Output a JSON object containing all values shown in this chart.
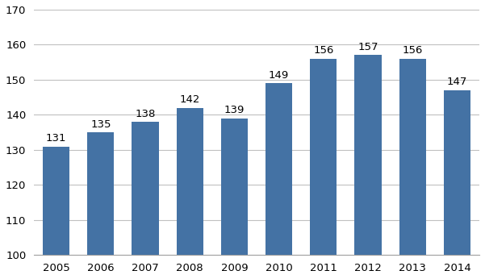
{
  "years": [
    "2005",
    "2006",
    "2007",
    "2008",
    "2009",
    "2010",
    "2011",
    "2012",
    "2013",
    "2014"
  ],
  "values": [
    131,
    135,
    138,
    142,
    139,
    149,
    156,
    157,
    156,
    147
  ],
  "bar_color": "#4472a4",
  "ylim": [
    100,
    170
  ],
  "yticks": [
    100,
    110,
    120,
    130,
    140,
    150,
    160,
    170
  ],
  "background_color": "#ffffff",
  "grid_color": "#c0c0c0",
  "label_fontsize": 9.5,
  "tick_fontsize": 9.5
}
